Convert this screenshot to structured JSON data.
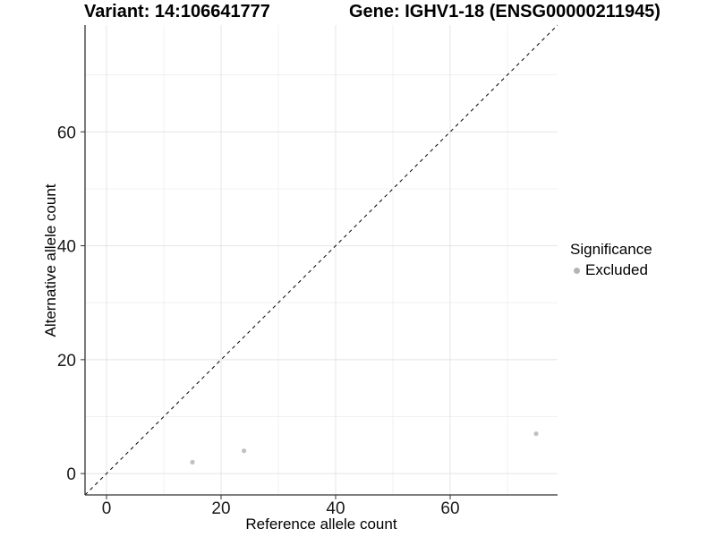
{
  "chart_data": {
    "type": "scatter",
    "title_left": "Variant: 14:106641777",
    "title_right": "Gene: IGHV1-18 (ENSG00000211945)",
    "xlabel": "Reference allele count",
    "ylabel": "Alternative allele count",
    "xlim": [
      -3.75,
      78.75
    ],
    "ylim": [
      -3.75,
      78.75
    ],
    "x_ticks": [
      0,
      20,
      40,
      60
    ],
    "y_ticks": [
      0,
      20,
      40,
      60
    ],
    "minor_gridlines": [
      10,
      30,
      50,
      70
    ],
    "grid": true,
    "series": [
      {
        "name": "Excluded",
        "color": "#c1c1c1",
        "points": [
          [
            15,
            2
          ],
          [
            24,
            4
          ],
          [
            75,
            7
          ]
        ]
      }
    ],
    "reference_line": {
      "type": "identity",
      "slope": 1,
      "intercept": 0,
      "linetype": "dashed",
      "color": "#000000"
    },
    "legend": {
      "title": "Significance",
      "position": "right",
      "items": [
        {
          "label": "Excluded",
          "color": "#b5b5b5"
        }
      ]
    }
  },
  "colors": {
    "background": "#ffffff",
    "grid_major": "#e4e4e4",
    "grid_minor": "#f1f1f1",
    "axis_line": "#333333",
    "tick": "#333333",
    "text": "#000000"
  }
}
